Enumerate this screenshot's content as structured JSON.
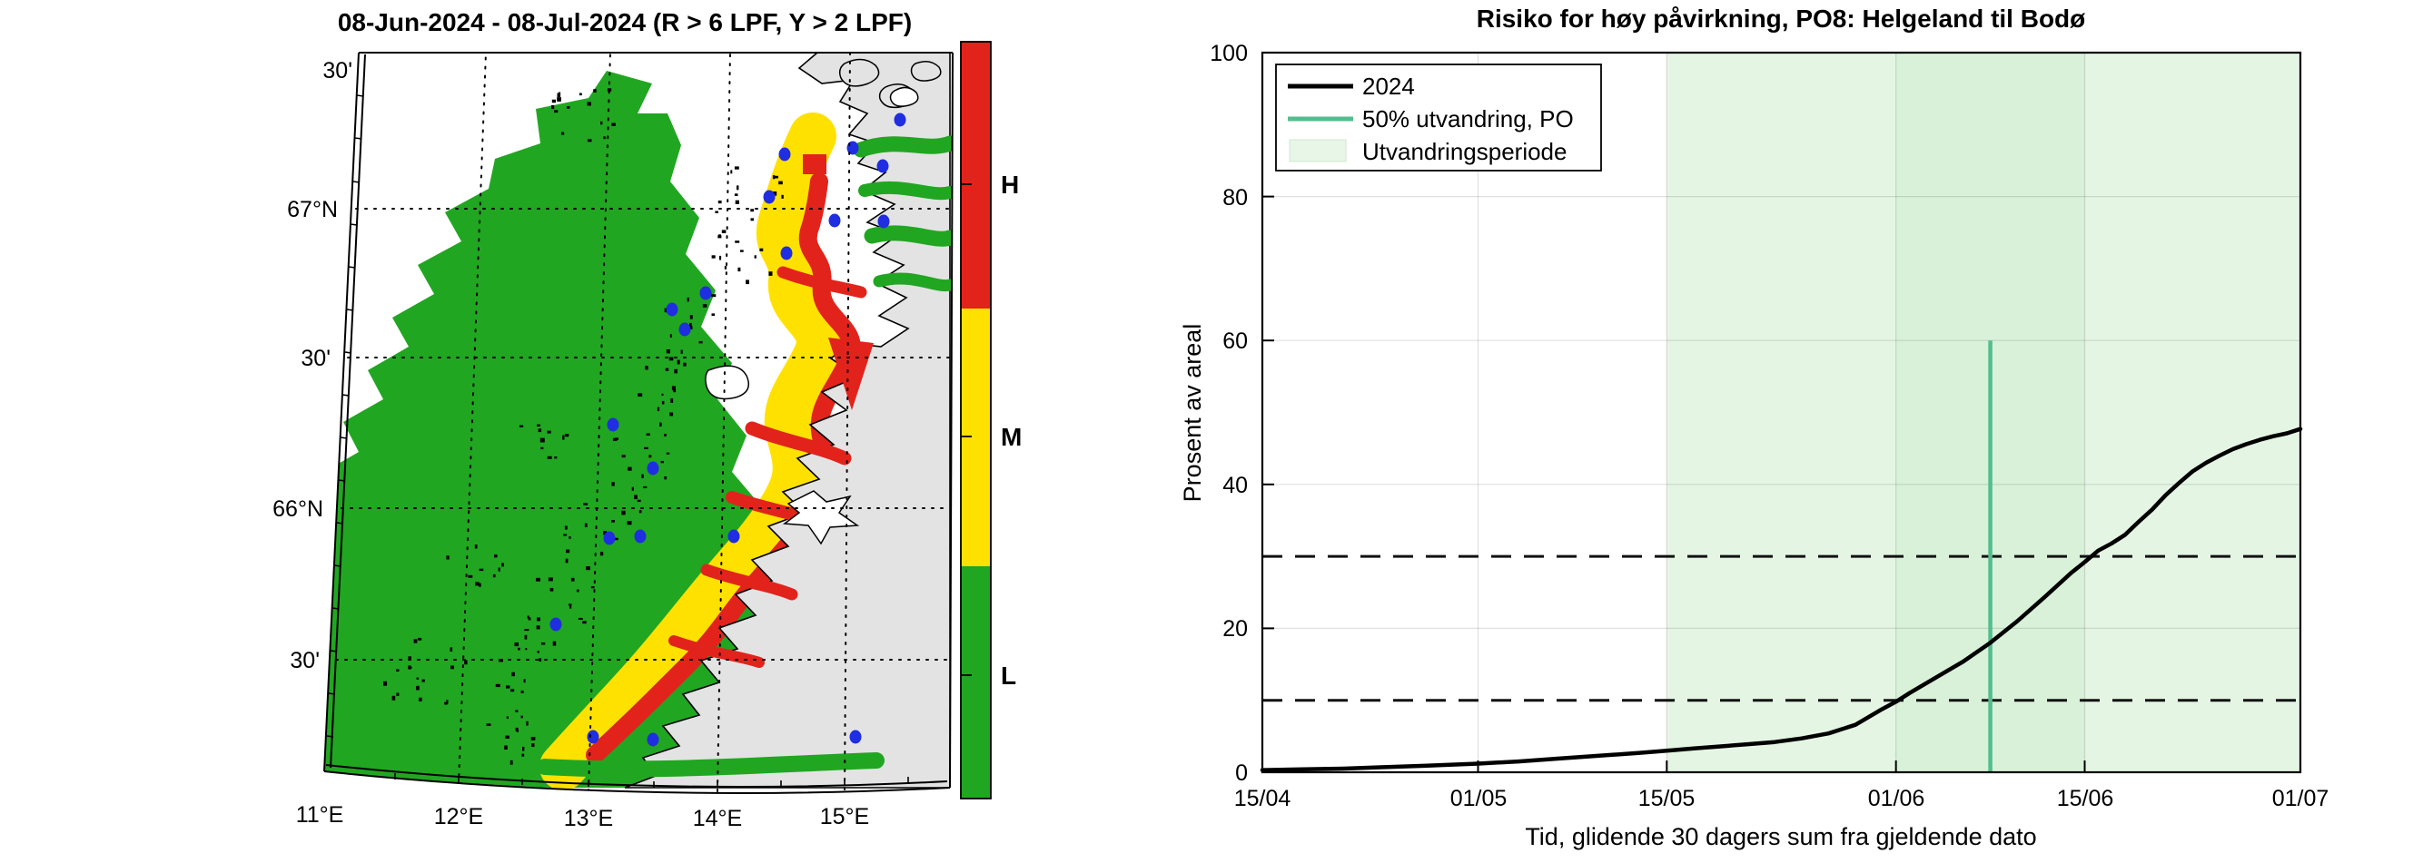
{
  "map_panel": {
    "title": "08-Jun-2024  - 08-Jul-2024  (R > 6 LPF, Y > 2 LPF)",
    "lat_labels": [
      "30'",
      "67°N",
      "30'",
      "66°N",
      "30'"
    ],
    "lon_labels": [
      "11°E",
      "12°E",
      "13°E",
      "14°E",
      "15°E"
    ],
    "colors": {
      "high": "#e2231c",
      "medium": "#ffe100",
      "low": "#21a621",
      "land": "#e3e3e3",
      "site": "#1f2ee0"
    },
    "colorbar": {
      "labels": [
        "H",
        "M",
        "L"
      ]
    },
    "sites": [
      [
        991,
        132
      ],
      [
        939,
        163
      ],
      [
        864,
        170
      ],
      [
        972,
        183
      ],
      [
        847,
        217
      ],
      [
        919,
        243
      ],
      [
        973,
        244
      ],
      [
        866,
        279
      ],
      [
        777,
        323
      ],
      [
        740,
        341
      ],
      [
        754,
        363
      ],
      [
        675,
        468
      ],
      [
        719,
        516
      ],
      [
        671,
        593
      ],
      [
        705,
        591
      ],
      [
        808,
        591
      ],
      [
        612,
        688
      ],
      [
        653,
        812
      ],
      [
        719,
        815
      ],
      [
        942,
        812
      ]
    ]
  },
  "chart_data": {
    "type": "line",
    "title": "Risiko for høy påvirkning, PO8: Helgeland til Bodø",
    "xlabel": "Tid, glidende 30 dagers sum fra gjeldende dato",
    "ylabel": "Prosent av areal",
    "ylim": [
      0,
      100
    ],
    "yticks": [
      0,
      20,
      40,
      60,
      80,
      100
    ],
    "xlim_days": [
      0,
      77
    ],
    "xticks": [
      {
        "day": 0,
        "label": "15/04"
      },
      {
        "day": 16,
        "label": "01/05"
      },
      {
        "day": 30,
        "label": "15/05"
      },
      {
        "day": 47,
        "label": "01/06"
      },
      {
        "day": 61,
        "label": "15/06"
      },
      {
        "day": 77,
        "label": "01/07"
      }
    ],
    "grid": true,
    "legend_position": "top-left",
    "legend": [
      {
        "label": "2024",
        "type": "line",
        "color": "#000000"
      },
      {
        "label": "50% utvandring, PO",
        "type": "line",
        "color": "#53bd8e"
      },
      {
        "label": "Utvandringsperiode",
        "type": "patch",
        "color": "#e7f6e7"
      }
    ],
    "dashed_hlines": [
      10,
      30
    ],
    "shaded_periods": [
      {
        "start_day": 30,
        "end_day": 77,
        "name": "utvandringsperiode"
      },
      {
        "start_day": 47,
        "end_day": 61,
        "name": "utvandringsperiode-overlapp"
      }
    ],
    "shade_color": "#cdeccd",
    "shade_opacity": 0.55,
    "vline": {
      "day": 54,
      "date": "08/06",
      "y_from": 0,
      "y_to": 60,
      "color": "#53bd8e"
    },
    "series": [
      {
        "name": "2024",
        "color": "#000000",
        "points": [
          [
            0,
            0.3
          ],
          [
            3,
            0.4
          ],
          [
            6,
            0.5
          ],
          [
            9,
            0.7
          ],
          [
            12,
            0.9
          ],
          [
            16,
            1.2
          ],
          [
            19,
            1.5
          ],
          [
            22,
            1.9
          ],
          [
            25,
            2.3
          ],
          [
            28,
            2.7
          ],
          [
            30,
            3.0
          ],
          [
            32,
            3.3
          ],
          [
            34,
            3.6
          ],
          [
            36,
            3.9
          ],
          [
            38,
            4.2
          ],
          [
            40,
            4.7
          ],
          [
            42,
            5.4
          ],
          [
            44,
            6.6
          ],
          [
            46,
            8.8
          ],
          [
            47,
            9.8
          ],
          [
            48,
            11.0
          ],
          [
            50,
            13.2
          ],
          [
            52,
            15.4
          ],
          [
            54,
            18.0
          ],
          [
            56,
            21.0
          ],
          [
            58,
            24.3
          ],
          [
            60,
            27.7
          ],
          [
            61,
            29.2
          ],
          [
            62,
            30.8
          ],
          [
            63,
            31.8
          ],
          [
            64,
            33.0
          ],
          [
            65,
            34.8
          ],
          [
            66,
            36.5
          ],
          [
            67,
            38.5
          ],
          [
            68,
            40.2
          ],
          [
            69,
            41.8
          ],
          [
            70,
            43.0
          ],
          [
            71,
            44.0
          ],
          [
            72,
            44.9
          ],
          [
            73,
            45.6
          ],
          [
            74,
            46.2
          ],
          [
            75,
            46.7
          ],
          [
            76,
            47.1
          ],
          [
            77,
            47.7
          ]
        ]
      }
    ]
  }
}
